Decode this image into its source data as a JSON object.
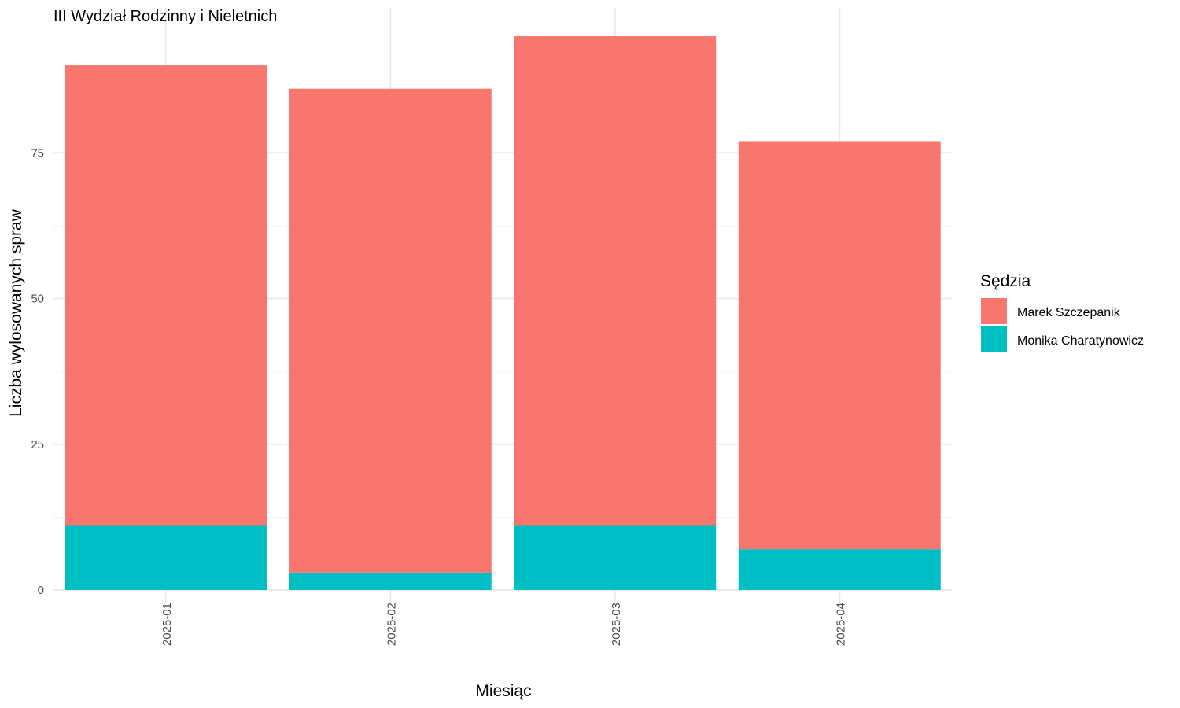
{
  "chart_data": {
    "type": "bar",
    "stacked": true,
    "title": "III Wydział Rodzinny i Nieletnich",
    "xlabel": "Miesiąc",
    "ylabel": "Liczba wylosowanych spraw",
    "categories": [
      "2025-01",
      "2025-02",
      "2025-03",
      "2025-04"
    ],
    "series": [
      {
        "name": "Monika Charatynowicz",
        "color": "#00BFC4",
        "values": [
          11,
          3,
          11,
          7
        ]
      },
      {
        "name": "Marek Szczepanik",
        "color": "#F8766D",
        "values": [
          79,
          83,
          84,
          70
        ]
      }
    ],
    "yticks": [
      0,
      25,
      50,
      75
    ],
    "ylim": [
      0,
      95
    ],
    "grid": true,
    "legend": {
      "title": "Sędzia",
      "position": "right",
      "items": [
        {
          "label": "Marek Szczepanik",
          "color": "#F8766D"
        },
        {
          "label": "Monika Charatynowicz",
          "color": "#00BFC4"
        }
      ]
    }
  }
}
